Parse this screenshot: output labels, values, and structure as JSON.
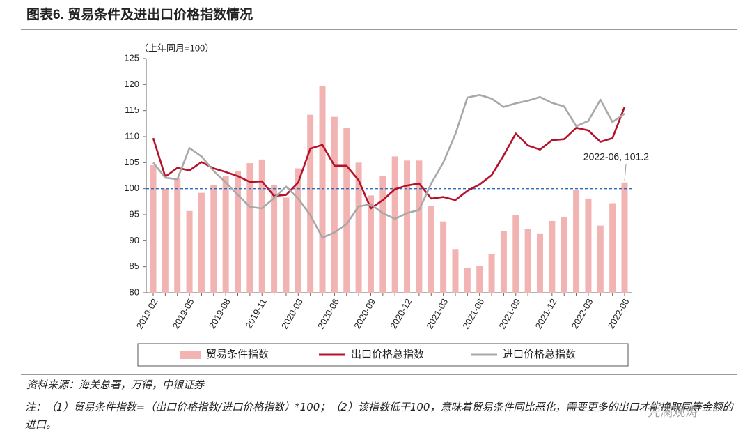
{
  "chart_data": {
    "type": "bar_line",
    "title": "图表6. 贸易条件及进出口价格指数情况",
    "y_unit": "（上年同月=100）",
    "categories": [
      "2019-02",
      null,
      null,
      "2019-05",
      null,
      null,
      "2019-08",
      null,
      null,
      "2019-11",
      null,
      null,
      "2020-03",
      null,
      null,
      "2020-06",
      null,
      null,
      "2020-09",
      null,
      null,
      "2020-12",
      null,
      null,
      "2021-03",
      null,
      null,
      "2021-06",
      null,
      null,
      "2021-09",
      null,
      null,
      "2021-12",
      null,
      null,
      "2022-03",
      null,
      null,
      "2022-06"
    ],
    "series": [
      {
        "name": "贸易条件指数",
        "kind": "bar",
        "color": "#f2b3b3",
        "values": [
          104.5,
          100,
          102,
          95.7,
          99.2,
          100.7,
          102.4,
          103.3,
          104.9,
          105.6,
          100.7,
          98.3,
          103.9,
          114.2,
          119.7,
          113.8,
          111.7,
          105,
          98.7,
          102.4,
          106.2,
          105.4,
          105.4,
          96.7,
          93.7,
          88.4,
          84.7,
          85.2,
          87.5,
          91.9,
          94.9,
          92.3,
          91.4,
          93.8,
          94.6,
          99.8,
          98.1,
          92.9,
          97.2,
          101.2
        ]
      },
      {
        "name": "出口价格总指数",
        "kind": "line",
        "color": "#b5122a",
        "values": [
          109.7,
          102.3,
          104,
          103.5,
          105.1,
          103.9,
          103.2,
          102.4,
          101.3,
          101.4,
          98.6,
          98.8,
          101.2,
          107.7,
          108.4,
          104.4,
          104.4,
          101.6,
          96.2,
          97.8,
          99.9,
          100.6,
          101,
          98.1,
          98.4,
          97.8,
          99.6,
          100.8,
          102.6,
          106.4,
          110.6,
          108.3,
          107.5,
          109.3,
          109.5,
          111.7,
          111.2,
          109,
          109.7,
          115.7
        ]
      },
      {
        "name": "进口价格总指数",
        "kind": "line",
        "color": "#a8a8a8",
        "values": [
          105,
          102.1,
          101.8,
          107.8,
          106.2,
          103.4,
          101.2,
          98.8,
          96.5,
          96.2,
          98.2,
          100.4,
          98.1,
          94.9,
          90.6,
          91.6,
          93.2,
          96.6,
          97,
          95.3,
          94.2,
          95.3,
          95.9,
          101,
          105,
          110.5,
          117.5,
          118,
          117.3,
          115.7,
          116.4,
          116.9,
          117.6,
          116.5,
          115.8,
          112,
          113,
          117.1,
          112.8,
          114.4
        ]
      }
    ],
    "reference_line": 100,
    "annotation": "2022-06, 101.2",
    "ylim": [
      80,
      125
    ],
    "yticks": [
      80,
      85,
      90,
      95,
      100,
      105,
      110,
      115,
      120,
      125
    ],
    "source": "资料来源：海关总署，万得，中银证券",
    "note": "注：（1）贸易条件指数=（出口价格指数/进口价格指数）*100；（2）该指数低于100，意味着贸易条件同比恶化，需要更多的出口才能换取同等金额的进口。",
    "watermark": "凭澜观涛"
  }
}
